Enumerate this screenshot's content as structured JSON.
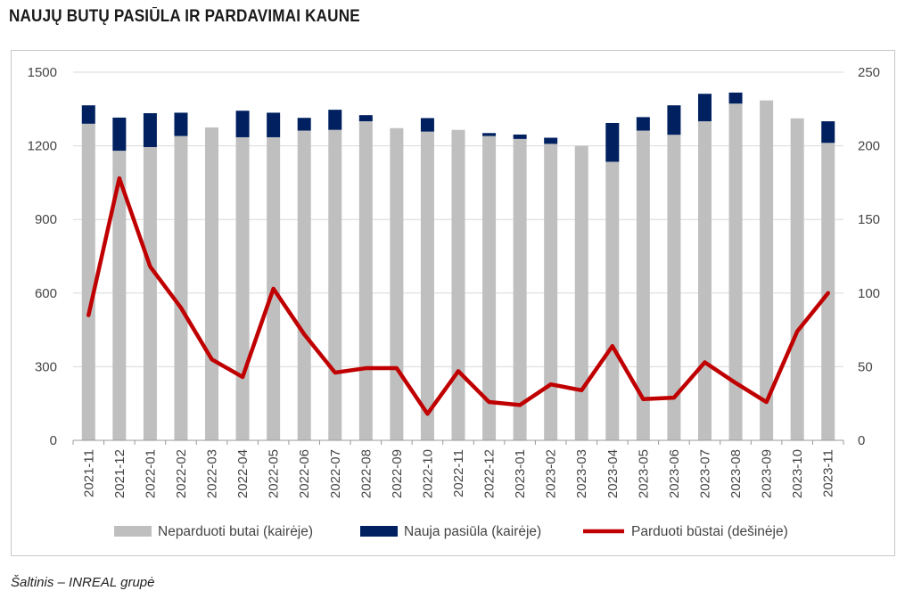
{
  "title": "NAUJŲ BUTŲ PASIŪLA IR PARDAVIMAI KAUNE",
  "source": "Šaltinis – INREAL grupė",
  "colors": {
    "unsold": "#bfbfbf",
    "new_supply": "#002060",
    "sold": "#c00000",
    "grid": "#d9d9d9"
  },
  "chart_data": {
    "type": "bar",
    "categories": [
      "2021-11",
      "2021-12",
      "2022-01",
      "2022-02",
      "2022-03",
      "2022-04",
      "2022-05",
      "2022-06",
      "2022-07",
      "2022-08",
      "2022-09",
      "2022-10",
      "2022-11",
      "2022-12",
      "2023-01",
      "2023-02",
      "2023-03",
      "2023-04",
      "2023-05",
      "2023-06",
      "2023-07",
      "2023-08",
      "2023-09",
      "2023-10",
      "2023-11"
    ],
    "stacked": true,
    "y_left": {
      "ylim": [
        0,
        1500
      ],
      "ticks": [
        "0",
        "300",
        "600",
        "900",
        "1200",
        "1500"
      ]
    },
    "y_right": {
      "ylim": [
        0,
        250
      ],
      "ticks": [
        "0",
        "50",
        "100",
        "150",
        "200",
        "250"
      ]
    },
    "grid": true,
    "legend_position": "bottom",
    "series": [
      {
        "name": "Neparduoti butai (kairėje)",
        "axis": "left",
        "kind": "bar",
        "values": [
          1290,
          1180,
          1195,
          1240,
          1275,
          1235,
          1235,
          1262,
          1265,
          1300,
          1272,
          1258,
          1265,
          1240,
          1228,
          1208,
          1200,
          1135,
          1262,
          1245,
          1300,
          1372,
          1385,
          1312,
          1212
        ]
      },
      {
        "name": "Nauja pasiūla (kairėje)",
        "axis": "left",
        "kind": "bar",
        "values": [
          75,
          135,
          138,
          95,
          0,
          108,
          100,
          52,
          82,
          25,
          0,
          55,
          0,
          12,
          18,
          25,
          0,
          158,
          55,
          120,
          112,
          45,
          0,
          0,
          88
        ]
      },
      {
        "name": "Parduoti būstai (dešinėje)",
        "axis": "right",
        "kind": "line",
        "values": [
          85,
          178,
          118,
          90,
          55,
          43,
          103,
          72,
          46,
          49,
          49,
          18,
          47,
          26,
          24,
          38,
          34,
          64,
          28,
          29,
          53,
          39,
          26,
          74,
          100
        ]
      }
    ]
  }
}
